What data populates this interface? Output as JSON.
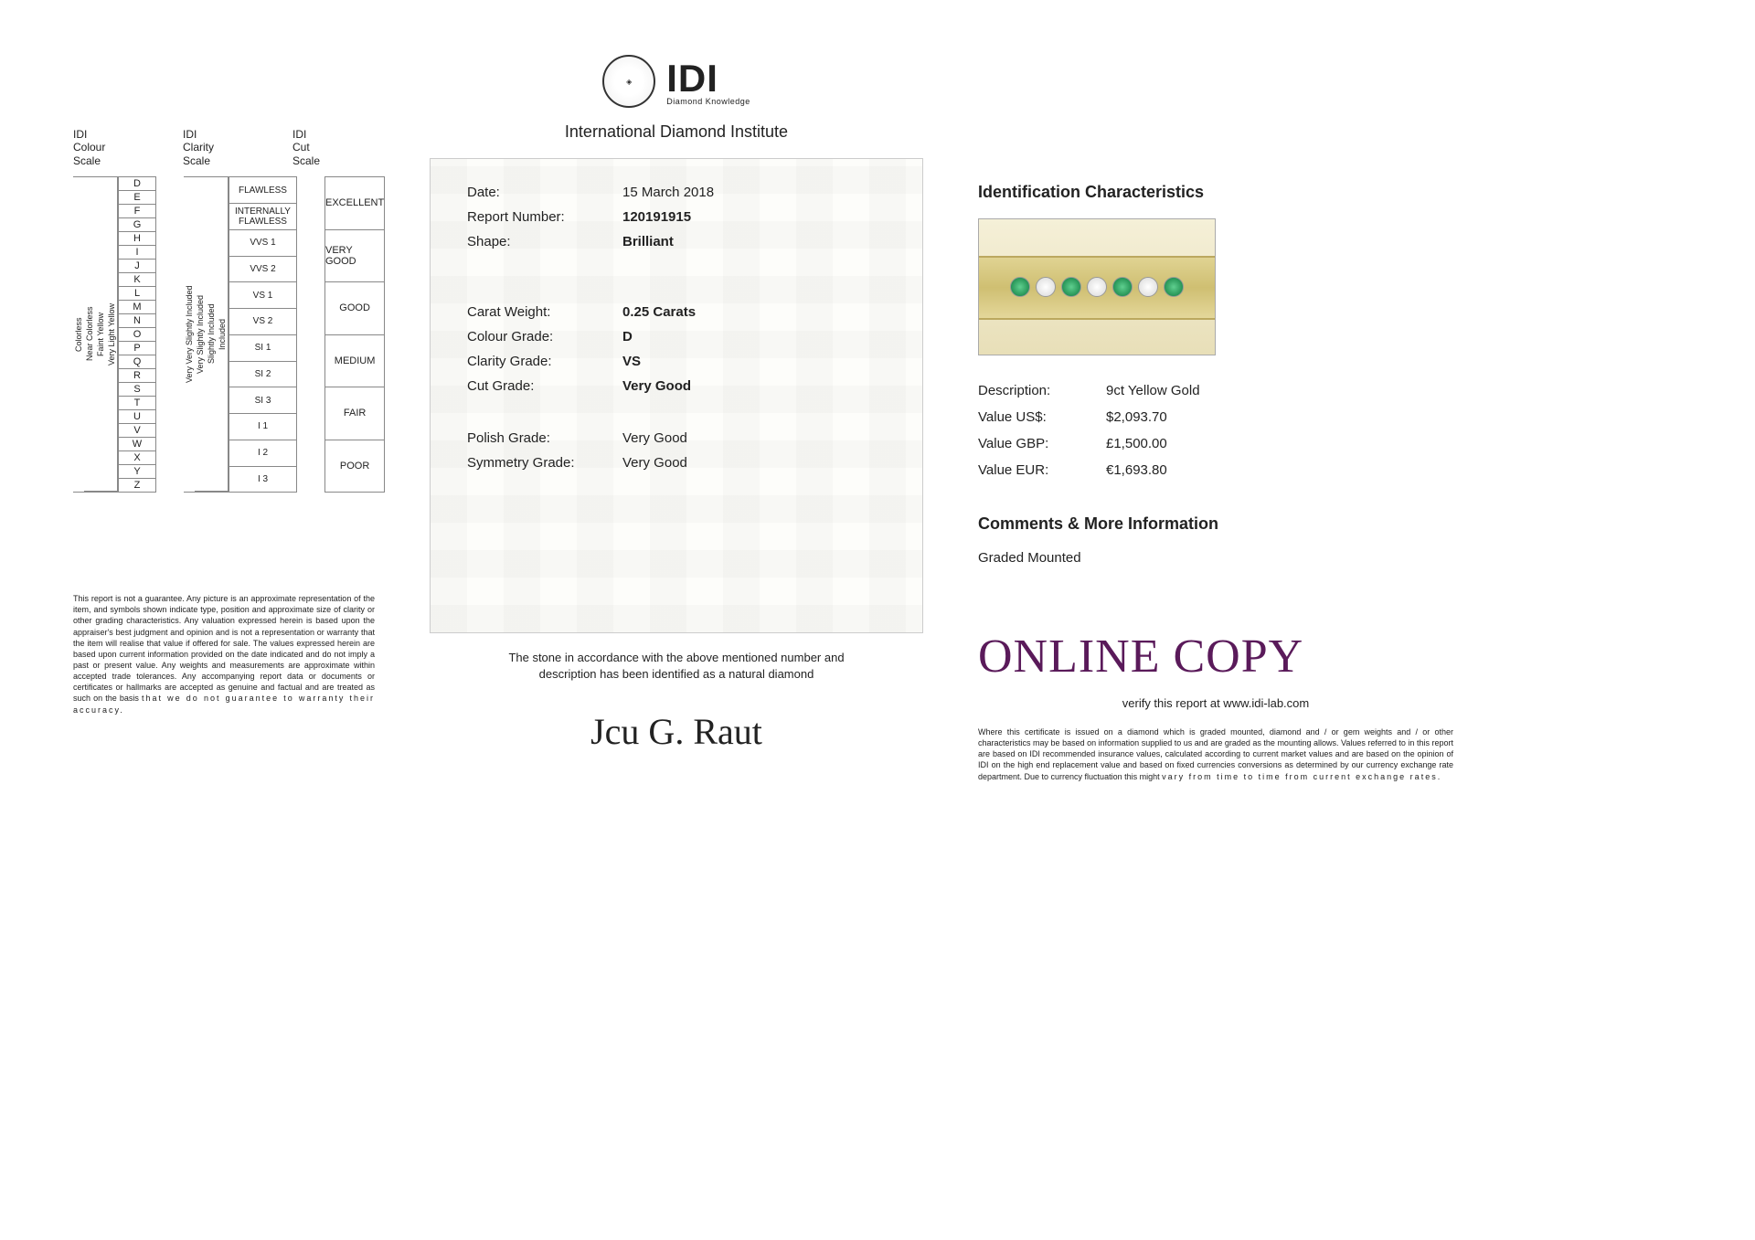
{
  "header": {
    "logo_text": "IDI",
    "logo_sub": "Diamond Knowledge",
    "institute": "International Diamond Institute"
  },
  "scales": {
    "colour_title1": "IDI",
    "colour_title2": "Colour",
    "colour_title3": "Scale",
    "clarity_title1": "IDI",
    "clarity_title2": "Clarity",
    "clarity_title3": "Scale",
    "cut_title1": "IDI",
    "cut_title2": "Cut",
    "cut_title3": "Scale",
    "colour_groups": [
      "Colorless",
      "Near Colorless",
      "Faint Yellow",
      "Very Light Yellow"
    ],
    "colour_letters": [
      "D",
      "E",
      "F",
      "G",
      "H",
      "I",
      "J",
      "K",
      "L",
      "M",
      "N",
      "O",
      "P",
      "Q",
      "R",
      "S",
      "T",
      "U",
      "V",
      "W",
      "X",
      "Y",
      "Z"
    ],
    "clarity_groups": [
      "Very Very Slightly Included",
      "Very Slightly Included",
      "Slightly Included",
      "Included"
    ],
    "clarity_values": [
      "FLAWLESS",
      "INTERNALLY FLAWLESS",
      "VVS 1",
      "VVS 2",
      "VS 1",
      "VS 2",
      "SI 1",
      "SI 2",
      "SI 3",
      "I 1",
      "I 2",
      "I 3"
    ],
    "cut_values": [
      "EXCELLENT",
      "VERY GOOD",
      "GOOD",
      "MEDIUM",
      "FAIR",
      "POOR"
    ]
  },
  "cert": {
    "date_lab": "Date:",
    "date_val": "15 March 2018",
    "report_lab": "Report Number:",
    "report_val": "120191915",
    "shape_lab": "Shape:",
    "shape_val": "Brilliant",
    "carat_lab": "Carat Weight:",
    "carat_val": "0.25 Carats",
    "colour_lab": "Colour Grade:",
    "colour_val": "D",
    "clarity_lab": "Clarity Grade:",
    "clarity_val": "VS",
    "cut_lab": "Cut Grade:",
    "cut_val": "Very Good",
    "polish_lab": "Polish Grade:",
    "polish_val": "Very Good",
    "symmetry_lab": "Symmetry Grade:",
    "symmetry_val": "Very Good"
  },
  "note_line1": "The stone in accordance with the above mentioned number and",
  "note_line2": "description has been identified as a natural diamond",
  "signature": "Jcu G. Raut",
  "ident": {
    "title": "Identification Characteristics",
    "desc_lab": "Description:",
    "desc_val": "9ct Yellow Gold",
    "usd_lab": "Value US$:",
    "usd_val": "$2,093.70",
    "gbp_lab": "Value GBP:",
    "gbp_val": "£1,500.00",
    "eur_lab": "Value EUR:",
    "eur_val": "€1,693.80"
  },
  "comments": {
    "title": "Comments & More Information",
    "body": "Graded Mounted"
  },
  "online_copy": "ONLINE COPY",
  "verify": "verify this report at www.idi-lab.com",
  "left_disclaimer": "This report is not a guarantee. Any picture is an approximate representation of the item, and symbols shown indicate type, position and approximate size of clarity or other grading characteristics. Any valuation expressed herein is based upon the appraiser's best judgment and opinion and is not a representation or warranty that the item will realise that value if offered for sale. The values expressed herein are based upon current information provided on the date indicated and do not imply a past or present value. Any weights and measurements are approximate within accepted trade tolerances. Any accompanying report data or documents or certificates or hallmarks are accepted as genuine and factual and are treated as such on the basis",
  "left_disclaimer_last": "that we do not guarantee to warranty their accuracy.",
  "right_disclaimer": "Where this certificate is issued on a diamond which is graded mounted, diamond and / or gem weights and / or other characteristics may be based on information supplied to us and are graded as the mounting allows. Values referred to in this report are based on IDI recommended insurance values, calculated according to current market values and are based on the opinion of IDI on the high end replacement value and based on fixed currencies conversions as determined by our currency exchange rate department. Due to currency fluctuation this might",
  "right_disclaimer_last": "vary from time to time from current exchange rates."
}
